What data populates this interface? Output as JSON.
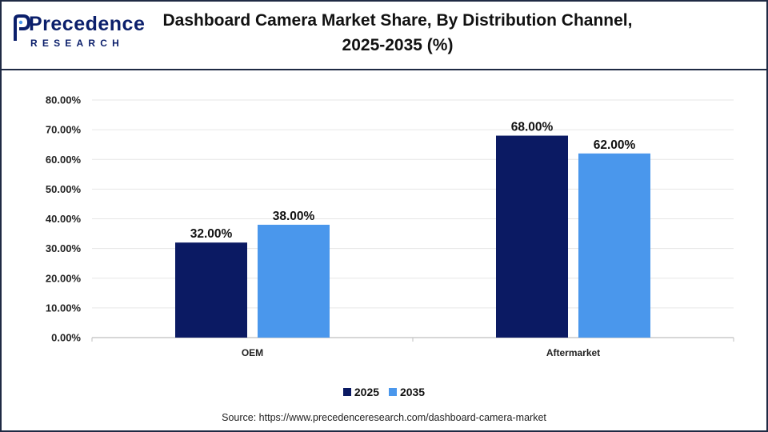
{
  "logo": {
    "main": "Precedence",
    "sub": "RESEARCH"
  },
  "title_lines": [
    "Dashboard Camera Market Share, By Distribution Channel,",
    "2025-2035 (%)"
  ],
  "colors": {
    "series_2025": "#0b1a63",
    "series_2035": "#4a97ec",
    "frame": "#1f2a44",
    "grid": "#e6e6e6"
  },
  "chart_data": {
    "type": "bar",
    "title": "Dashboard Camera Market Share, By Distribution Channel, 2025-2035 (%)",
    "categories": [
      "OEM",
      "Aftermarket"
    ],
    "series": [
      {
        "name": "2025",
        "values": [
          32,
          68
        ]
      },
      {
        "name": "2035",
        "values": [
          38,
          62
        ]
      }
    ],
    "data_labels": [
      [
        "32.00%",
        "68.00%"
      ],
      [
        "38.00%",
        "62.00%"
      ]
    ],
    "ylim": [
      0,
      80
    ],
    "yticks": [
      0,
      10,
      20,
      30,
      40,
      50,
      60,
      70,
      80
    ],
    "ytick_labels": [
      "0.00%",
      "10.00%",
      "20.00%",
      "30.00%",
      "40.00%",
      "50.00%",
      "60.00%",
      "70.00%",
      "80.00%"
    ],
    "xlabel": "",
    "ylabel": "",
    "grid": true,
    "legend_position": "bottom-center"
  },
  "source": "Source: https://www.precedenceresearch.com/dashboard-camera-market"
}
